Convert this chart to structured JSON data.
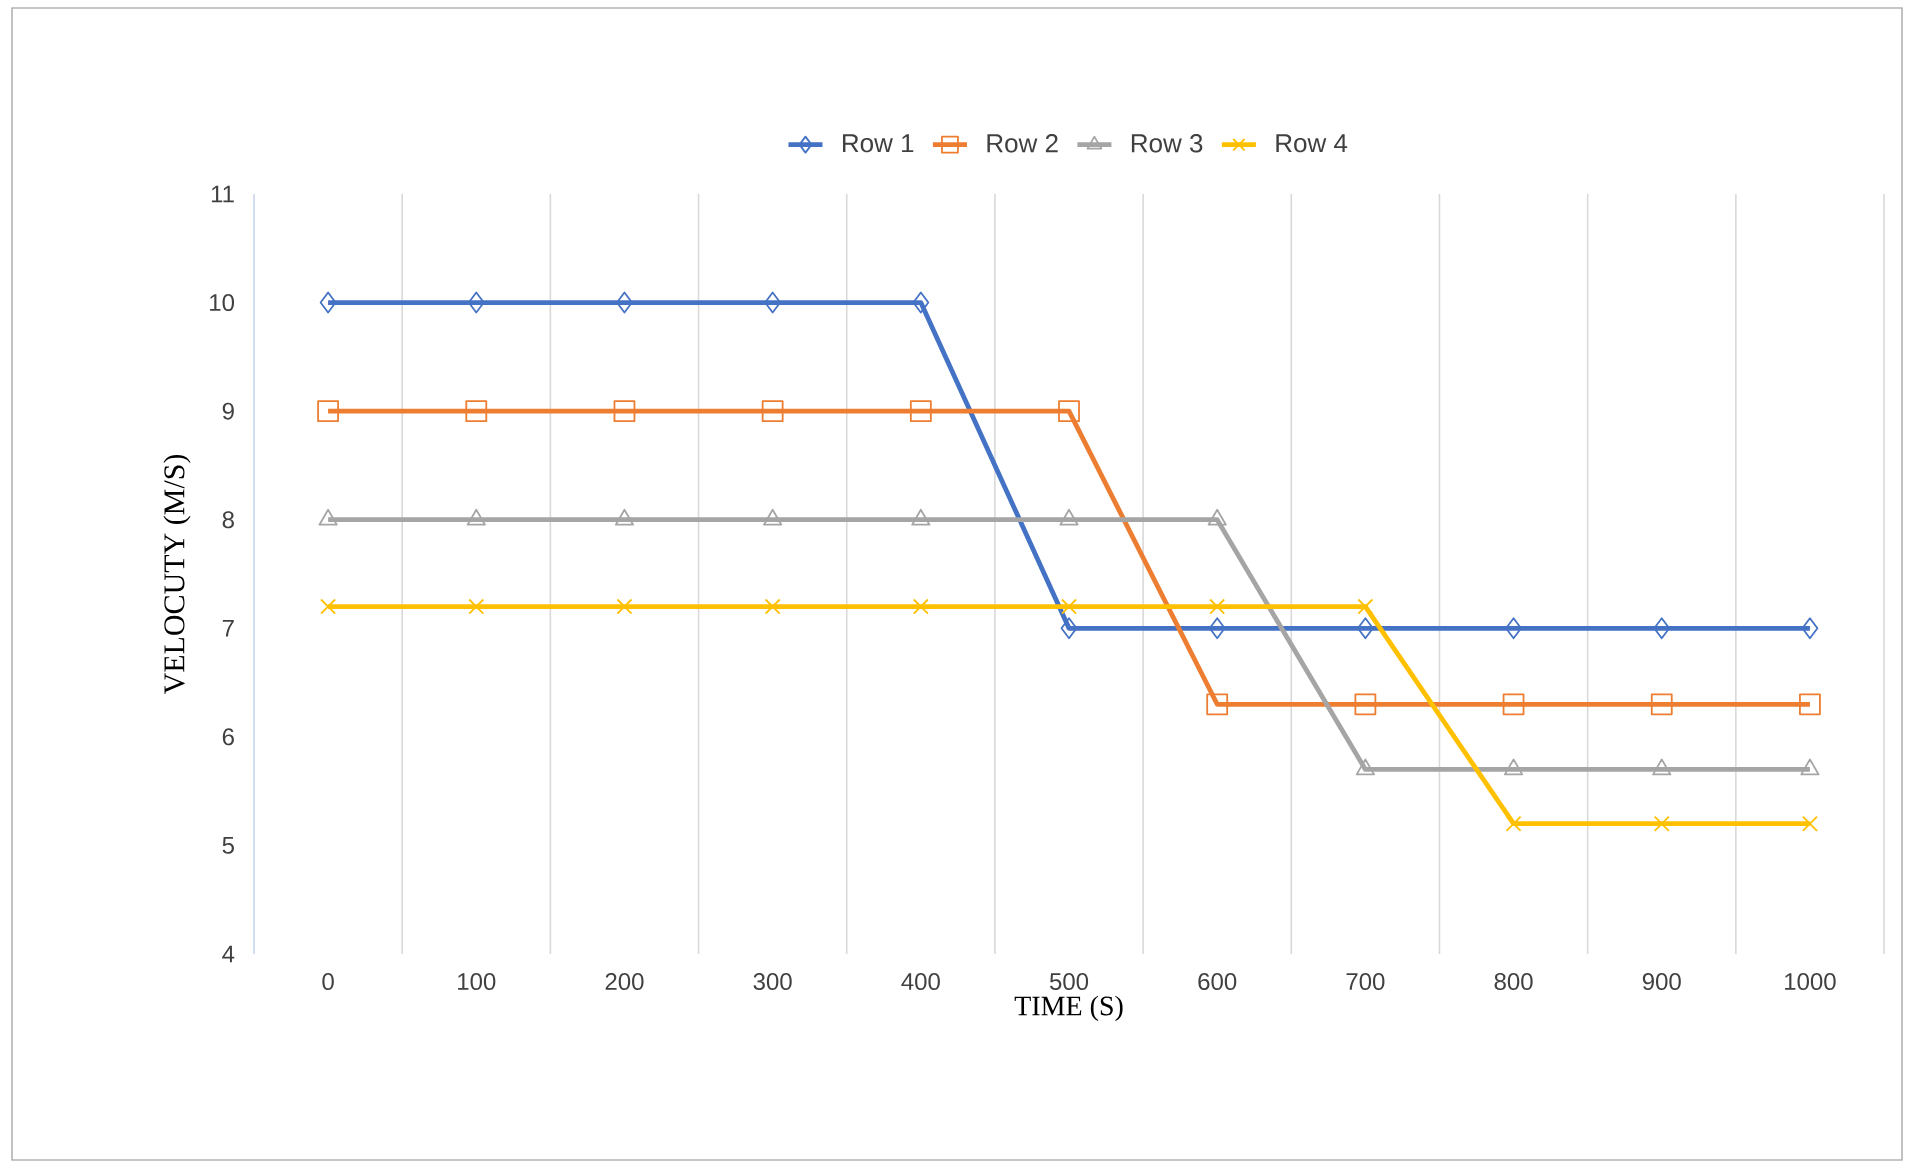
{
  "chart_data": {
    "type": "line",
    "xlabel": "TIME (S)",
    "ylabel": "VELOCUTY (M/S)",
    "categories": [
      "0",
      "100",
      "200",
      "300",
      "400",
      "500",
      "600",
      "700",
      "800",
      "900",
      "1000"
    ],
    "series": [
      {
        "name": "Row 1",
        "color": "#4472c4",
        "marker": "diamond",
        "values": [
          10,
          10,
          10,
          10,
          10,
          7,
          7,
          7,
          7,
          7,
          7
        ]
      },
      {
        "name": "Row 2",
        "color": "#ed7d31",
        "marker": "square",
        "values": [
          9,
          9,
          9,
          9,
          9,
          9,
          6.3,
          6.3,
          6.3,
          6.3,
          6.3
        ]
      },
      {
        "name": "Row 3",
        "color": "#a5a5a5",
        "marker": "triangle",
        "values": [
          8,
          8,
          8,
          8,
          8,
          8,
          8,
          5.7,
          5.7,
          5.7,
          5.7
        ]
      },
      {
        "name": "Row 4",
        "color": "#ffc000",
        "marker": "cross",
        "values": [
          7.2,
          7.2,
          7.2,
          7.2,
          7.2,
          7.2,
          7.2,
          7.2,
          5.2,
          5.2,
          5.2
        ]
      }
    ],
    "ylim": [
      4,
      11
    ],
    "yticks": [
      4,
      5,
      6,
      7,
      8,
      9,
      10,
      11
    ],
    "grid": "x",
    "legend": "top",
    "line_style": "solid"
  }
}
